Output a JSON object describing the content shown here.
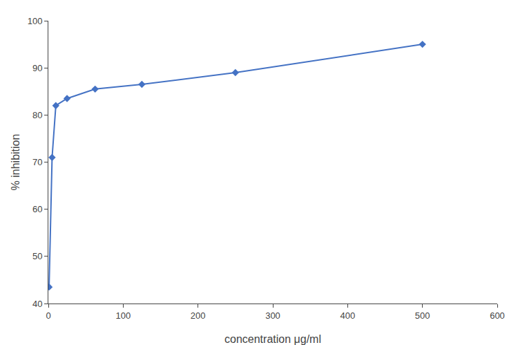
{
  "chart_data": {
    "type": "line",
    "x": [
      1,
      5,
      10,
      25,
      62.5,
      125,
      250,
      500
    ],
    "values": [
      43.5,
      71.0,
      82.0,
      83.5,
      85.5,
      86.5,
      89.0,
      95.0
    ],
    "color": "#4472C4",
    "marker": "diamond",
    "xlabel": "concentration μg/ml",
    "ylabel": "% inhibition",
    "xlim": [
      0,
      600
    ],
    "ylim": [
      40,
      100
    ],
    "xticks": [
      0,
      100,
      200,
      300,
      400,
      500,
      600
    ],
    "yticks": [
      40,
      50,
      60,
      70,
      80,
      90,
      100
    ],
    "grid": false
  }
}
